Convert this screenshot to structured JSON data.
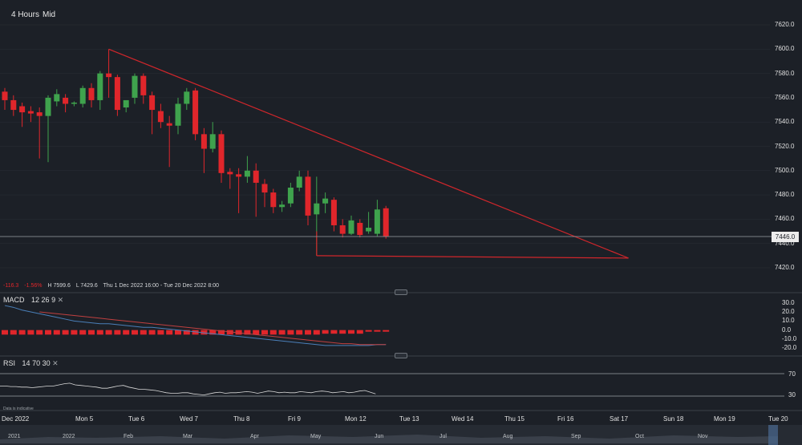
{
  "toolbar": {
    "interval": "4 Hours",
    "price_type": "Mid"
  },
  "main_chart": {
    "current_price_label": "7446.0",
    "info": {
      "change": "-116.3",
      "change_pct": "-1.56%",
      "high": "H 7599.6",
      "low": "L 7429.6",
      "range": "Thu 1 Dec 2022 16:00 - Tue 20 Dec 2022 8:00"
    }
  },
  "macd": {
    "label": "MACD",
    "params": [
      "12",
      "26",
      "9"
    ],
    "ticks": [
      "30.0",
      "20.0",
      "10.0",
      "0.0",
      "-10.0",
      "-20.0"
    ]
  },
  "rsi": {
    "label": "RSI",
    "params": [
      "14",
      "70",
      "30"
    ],
    "ticks": [
      "70",
      "30"
    ]
  },
  "footer": {
    "note": "Data is indicative"
  },
  "time_axis": [
    "Dec 2022",
    "Mon 5",
    "Tue 6",
    "Wed 7",
    "Thu 8",
    "Fri 9",
    "Mon 12",
    "Tue 13",
    "Wed 14",
    "Thu 15",
    "Fri 16",
    "Sat 17",
    "Sun 18",
    "Mon 19",
    "Tue 20"
  ],
  "navigator_axis": [
    "2021",
    "2022",
    "Feb",
    "Mar",
    "Apr",
    "May",
    "Jun",
    "Jul",
    "Aug",
    "Sep",
    "Oct",
    "Nov"
  ],
  "colors": {
    "up": "#3fa34d",
    "down": "#e0262b",
    "trendline": "#d0262b",
    "background": "#1c2027"
  },
  "chart_data": {
    "type": "candlestick",
    "y_ticks": [
      7620,
      7600,
      7580,
      7560,
      7540,
      7520,
      7500,
      7480,
      7460,
      7440,
      7420
    ],
    "ylim": [
      7413,
      7632
    ],
    "current_price": 7446.0,
    "candles": [
      {
        "o": 7565,
        "h": 7568,
        "c": 7558,
        "l": 7550
      },
      {
        "o": 7558,
        "h": 7562,
        "c": 7550,
        "l": 7545
      },
      {
        "o": 7553,
        "h": 7556,
        "c": 7548,
        "l": 7536
      },
      {
        "o": 7549,
        "h": 7553,
        "c": 7547,
        "l": 7540
      },
      {
        "o": 7548,
        "h": 7552,
        "c": 7545,
        "l": 7510
      },
      {
        "o": 7545,
        "h": 7562,
        "c": 7560,
        "l": 7507
      },
      {
        "o": 7557,
        "h": 7567,
        "c": 7563,
        "l": 7553
      },
      {
        "o": 7560,
        "h": 7563,
        "c": 7555,
        "l": 7548
      },
      {
        "o": 7555,
        "h": 7557,
        "c": 7556,
        "l": 7553
      },
      {
        "o": 7555,
        "h": 7570,
        "c": 7568,
        "l": 7552
      },
      {
        "o": 7568,
        "h": 7572,
        "c": 7558,
        "l": 7552
      },
      {
        "o": 7558,
        "h": 7582,
        "c": 7580,
        "l": 7550
      },
      {
        "o": 7580,
        "h": 7600,
        "c": 7577,
        "l": 7560
      },
      {
        "o": 7577,
        "h": 7579,
        "c": 7550,
        "l": 7545
      },
      {
        "o": 7552,
        "h": 7556,
        "c": 7558,
        "l": 7548
      },
      {
        "o": 7560,
        "h": 7580,
        "c": 7578,
        "l": 7555
      },
      {
        "o": 7578,
        "h": 7580,
        "c": 7562,
        "l": 7555
      },
      {
        "o": 7562,
        "h": 7565,
        "c": 7550,
        "l": 7530
      },
      {
        "o": 7549,
        "h": 7555,
        "c": 7540,
        "l": 7535
      },
      {
        "o": 7539,
        "h": 7545,
        "c": 7537,
        "l": 7503
      },
      {
        "o": 7537,
        "h": 7560,
        "c": 7555,
        "l": 7530
      },
      {
        "o": 7555,
        "h": 7568,
        "c": 7565,
        "l": 7550
      },
      {
        "o": 7566,
        "h": 7568,
        "c": 7530,
        "l": 7525
      },
      {
        "o": 7530,
        "h": 7535,
        "c": 7518,
        "l": 7498
      },
      {
        "o": 7518,
        "h": 7540,
        "c": 7530,
        "l": 7515
      },
      {
        "o": 7530,
        "h": 7533,
        "c": 7498,
        "l": 7490
      },
      {
        "o": 7499,
        "h": 7502,
        "c": 7497,
        "l": 7485
      },
      {
        "o": 7497,
        "h": 7502,
        "c": 7495,
        "l": 7465
      },
      {
        "o": 7495,
        "h": 7512,
        "c": 7500,
        "l": 7490
      },
      {
        "o": 7500,
        "h": 7506,
        "c": 7490,
        "l": 7462
      },
      {
        "o": 7489,
        "h": 7493,
        "c": 7482,
        "l": 7470
      },
      {
        "o": 7482,
        "h": 7485,
        "c": 7470,
        "l": 7465
      },
      {
        "o": 7470,
        "h": 7475,
        "c": 7472,
        "l": 7466
      },
      {
        "o": 7473,
        "h": 7490,
        "c": 7486,
        "l": 7470
      },
      {
        "o": 7486,
        "h": 7500,
        "c": 7495,
        "l": 7483
      },
      {
        "o": 7495,
        "h": 7500,
        "c": 7463,
        "l": 7455
      },
      {
        "o": 7464,
        "h": 7495,
        "c": 7473,
        "l": 7430
      },
      {
        "o": 7473,
        "h": 7482,
        "c": 7477,
        "l": 7465
      },
      {
        "o": 7476,
        "h": 7478,
        "c": 7455,
        "l": 7450
      },
      {
        "o": 7455,
        "h": 7460,
        "c": 7448,
        "l": 7445
      },
      {
        "o": 7448,
        "h": 7463,
        "c": 7459,
        "l": 7447
      },
      {
        "o": 7457,
        "h": 7460,
        "c": 7447,
        "l": 7445
      },
      {
        "o": 7450,
        "h": 7466,
        "c": 7453,
        "l": 7448
      },
      {
        "o": 7448,
        "h": 7476,
        "c": 7468,
        "l": 7446
      },
      {
        "o": 7469,
        "h": 7471,
        "c": 7446,
        "l": 7444
      }
    ],
    "trendlines": [
      {
        "from": {
          "bar": 12,
          "price": 7600
        },
        "to": {
          "bar": 72,
          "price": 7428
        }
      },
      {
        "from": {
          "bar": 36,
          "price": 7430
        },
        "to": {
          "bar": 72,
          "price": 7428
        }
      },
      {
        "from": {
          "bar": 36,
          "price": 7430
        },
        "to": {
          "bar": 36,
          "price": 7450
        }
      }
    ],
    "macd": {
      "range": [
        -25,
        35
      ],
      "histogram": [
        -2,
        -2,
        -2,
        -2,
        -2,
        -2,
        -2,
        -2,
        -2,
        -2,
        -2,
        -2,
        -2,
        -2,
        -2,
        -2,
        -2,
        -2,
        -2,
        -2,
        -2,
        -2,
        -2,
        -2,
        -2,
        -2,
        -2,
        -2,
        -2,
        -2,
        -2,
        -2,
        -2,
        -2,
        -2,
        -2,
        -2,
        -1,
        -1,
        -1,
        -1,
        -1,
        0,
        0,
        0
      ],
      "macd_line": [
        27,
        25,
        22,
        20,
        18,
        16,
        14,
        12,
        10,
        9,
        8,
        7,
        7,
        6,
        5,
        4,
        3,
        3,
        2,
        1,
        0,
        -1,
        -2,
        -3,
        -4,
        -5,
        -6,
        -7,
        -8,
        -9,
        -10,
        -11,
        -12,
        -13,
        -14,
        -15,
        -16,
        -17,
        -17,
        -17,
        -17,
        -17,
        -17,
        -16,
        -16
      ],
      "signal_line": [
        null,
        null,
        null,
        null,
        20,
        19,
        18,
        17,
        16,
        15,
        14,
        13,
        12,
        11,
        10,
        9,
        8,
        7,
        6,
        5,
        4,
        3,
        2,
        1,
        0,
        -1,
        -2,
        -3,
        -4,
        -5,
        -6,
        -7,
        -8,
        -9,
        -10,
        -11,
        -12,
        -13,
        -14,
        -15,
        -15,
        -16,
        -16,
        -16,
        -16
      ]
    },
    "rsi": {
      "range": [
        10,
        90
      ],
      "values": [
        48,
        48,
        47,
        47,
        46,
        46,
        45,
        46,
        47,
        48,
        48,
        50,
        52,
        53,
        50,
        49,
        48,
        47,
        46,
        44,
        44,
        46,
        48,
        49,
        46,
        44,
        42,
        42,
        41,
        40,
        38,
        36,
        35,
        35,
        36,
        36,
        34,
        33,
        32,
        34,
        36,
        37,
        35,
        36,
        36,
        37,
        38,
        37,
        35,
        37,
        39,
        38,
        36,
        37,
        36,
        36,
        38,
        37,
        36,
        38,
        39,
        38,
        36,
        37,
        38,
        36,
        37,
        39,
        40,
        37,
        34
      ]
    }
  }
}
